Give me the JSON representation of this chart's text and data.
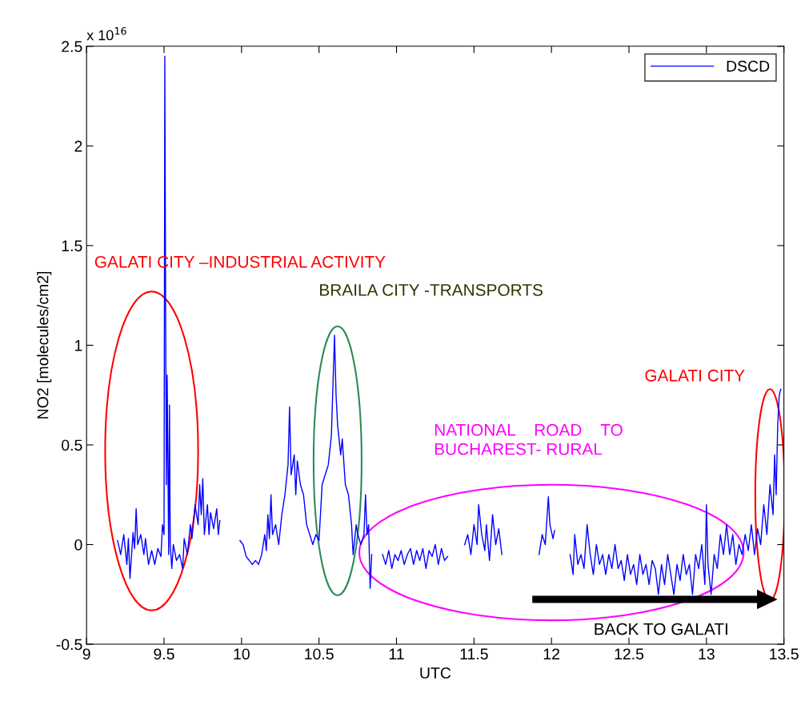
{
  "chart_data": {
    "type": "line",
    "xlabel": "UTC",
    "ylabel": "NO2 [molecules/cm2]",
    "xlim": [
      9,
      13.5
    ],
    "xticks": [
      9,
      9.5,
      10,
      10.5,
      11,
      11.5,
      12,
      12.5,
      13,
      13.5
    ],
    "ylim": [
      -0.5,
      2.5
    ],
    "yticks": [
      -0.5,
      0,
      0.5,
      1,
      1.5,
      2,
      2.5
    ],
    "grid": false,
    "legend": "top right",
    "marker": "none",
    "line_style": "solid",
    "annotations": [
      "x 10$^{16}$",
      "GALATI CITY –INDUSTRIAL ACTIVITY",
      "BRAILA CITY -TRANSPORTS",
      "NATIONAL    ROAD    TO\nBUCHAREST- RURAL",
      "GALATI CITY",
      "BACK TO GALATI"
    ],
    "series": [
      {
        "name": "DSCD",
        "color": "#0000ff",
        "x": [
          9.2,
          9.22,
          9.24,
          9.26,
          9.27,
          9.28,
          9.3,
          9.31,
          9.32,
          9.33,
          9.35,
          9.37,
          9.38,
          9.4,
          9.42,
          9.44,
          9.46,
          9.48,
          9.49,
          9.5,
          9.505,
          9.51,
          9.515,
          9.52,
          9.53,
          9.535,
          9.54,
          9.55,
          9.56,
          9.58,
          9.6,
          9.62,
          9.63,
          9.65,
          9.67,
          9.68,
          9.7,
          9.72,
          9.73,
          9.74,
          9.75,
          9.76,
          9.78,
          9.79,
          9.8,
          9.82,
          9.84,
          9.85,
          9.86,
          9.92,
          9.99,
          10.01,
          10.03,
          10.05,
          10.07,
          10.09,
          10.11,
          10.13,
          10.15,
          10.16,
          10.17,
          10.18,
          10.19,
          10.2,
          10.22,
          10.24,
          10.26,
          10.28,
          10.3,
          10.31,
          10.32,
          10.34,
          10.35,
          10.36,
          10.38,
          10.4,
          10.42,
          10.44,
          10.46,
          10.48,
          10.5,
          10.52,
          10.54,
          10.56,
          10.58,
          10.59,
          10.6,
          10.61,
          10.62,
          10.64,
          10.65,
          10.67,
          10.69,
          10.71,
          10.72,
          10.74,
          10.75,
          10.77,
          10.79,
          10.8,
          10.81,
          10.82,
          10.83,
          10.84,
          10.87,
          10.91,
          10.93,
          10.95,
          10.97,
          10.99,
          11.01,
          11.03,
          11.05,
          11.07,
          11.09,
          11.11,
          11.13,
          11.15,
          11.17,
          11.19,
          11.21,
          11.23,
          11.25,
          11.27,
          11.29,
          11.31,
          11.33,
          11.39,
          11.44,
          11.46,
          11.48,
          11.5,
          11.52,
          11.53,
          11.55,
          11.57,
          11.58,
          11.6,
          11.62,
          11.64,
          11.66,
          11.68,
          11.8,
          11.92,
          11.94,
          11.96,
          11.98,
          11.99,
          12.01,
          12.02,
          12.07,
          12.12,
          12.14,
          12.15,
          12.17,
          12.19,
          12.21,
          12.23,
          12.25,
          12.27,
          12.29,
          12.31,
          12.33,
          12.35,
          12.37,
          12.39,
          12.41,
          12.43,
          12.45,
          12.47,
          12.49,
          12.51,
          12.53,
          12.55,
          12.57,
          12.59,
          12.61,
          12.63,
          12.65,
          12.67,
          12.69,
          12.71,
          12.73,
          12.75,
          12.77,
          12.79,
          12.81,
          12.83,
          12.85,
          12.87,
          12.89,
          12.91,
          12.93,
          12.95,
          12.97,
          12.99,
          13.0,
          13.01,
          13.03,
          13.05,
          13.07,
          13.09,
          13.11,
          13.13,
          13.15,
          13.17,
          13.19,
          13.21,
          13.23,
          13.25,
          13.27,
          13.29,
          13.31,
          13.33,
          13.35,
          13.37,
          13.39,
          13.41,
          13.43,
          13.44,
          13.45,
          13.46,
          13.47,
          13.48
        ],
        "values": [
          0.02,
          -0.05,
          0.05,
          -0.1,
          0.03,
          -0.17,
          0.06,
          -0.02,
          0.18,
          0.0,
          0.05,
          -0.05,
          0.03,
          -0.1,
          -0.03,
          -0.1,
          -0.02,
          -0.06,
          0.1,
          0.05,
          2.45,
          1.2,
          0.3,
          0.85,
          -0.05,
          0.7,
          0.0,
          -0.12,
          0.0,
          -0.08,
          -0.05,
          -0.12,
          0.03,
          -0.05,
          0.1,
          0.03,
          0.2,
          0.1,
          0.3,
          0.15,
          0.33,
          0.05,
          0.2,
          0.05,
          0.16,
          0.08,
          0.18,
          0.05,
          0.12,
          null,
          0.02,
          0.0,
          -0.06,
          -0.08,
          -0.1,
          -0.08,
          -0.1,
          -0.05,
          0.05,
          -0.03,
          0.15,
          0.03,
          0.25,
          0.05,
          0.1,
          0.0,
          0.15,
          0.25,
          0.4,
          0.69,
          0.35,
          0.45,
          0.25,
          0.42,
          0.3,
          0.25,
          0.1,
          0.05,
          0.0,
          0.05,
          0.02,
          0.3,
          0.35,
          0.4,
          0.55,
          0.8,
          1.05,
          0.75,
          0.6,
          0.45,
          0.53,
          0.3,
          0.25,
          0.1,
          -0.05,
          0.1,
          0.05,
          0.0,
          0.05,
          0.25,
          0.05,
          0.1,
          -0.22,
          -0.05,
          null,
          -0.05,
          -0.1,
          -0.03,
          -0.12,
          -0.05,
          -0.08,
          -0.03,
          -0.1,
          -0.05,
          -0.02,
          -0.1,
          -0.03,
          -0.08,
          -0.02,
          -0.12,
          -0.03,
          -0.06,
          0.0,
          -0.1,
          -0.02,
          -0.08,
          -0.06,
          null,
          0.0,
          0.05,
          -0.05,
          0.1,
          0.0,
          0.2,
          0.05,
          -0.03,
          0.1,
          -0.08,
          0.15,
          0.0,
          0.08,
          -0.05,
          null,
          -0.05,
          0.05,
          0.0,
          0.24,
          0.1,
          0.03,
          0.07,
          null,
          -0.05,
          -0.15,
          0.05,
          -0.1,
          -0.05,
          -0.12,
          0.1,
          -0.05,
          -0.15,
          0.0,
          -0.1,
          -0.05,
          -0.15,
          -0.05,
          -0.12,
          0.0,
          -0.12,
          -0.08,
          -0.18,
          -0.05,
          -0.15,
          -0.1,
          -0.2,
          -0.05,
          -0.15,
          -0.1,
          -0.2,
          -0.08,
          -0.12,
          -0.25,
          -0.1,
          -0.2,
          -0.05,
          -0.15,
          -0.25,
          -0.1,
          -0.18,
          -0.05,
          -0.15,
          -0.1,
          -0.25,
          -0.05,
          -0.12,
          0.0,
          -0.2,
          0.2,
          -0.1,
          -0.25,
          -0.05,
          -0.12,
          0.05,
          -0.05,
          0.1,
          -0.05,
          0.05,
          -0.1,
          0.0,
          -0.05,
          0.05,
          -0.03,
          0.1,
          -0.05,
          0.08,
          0.0,
          0.2,
          0.05,
          0.3,
          0.15,
          0.45,
          0.25,
          0.6,
          0.75,
          0.78
        ]
      }
    ]
  }
}
